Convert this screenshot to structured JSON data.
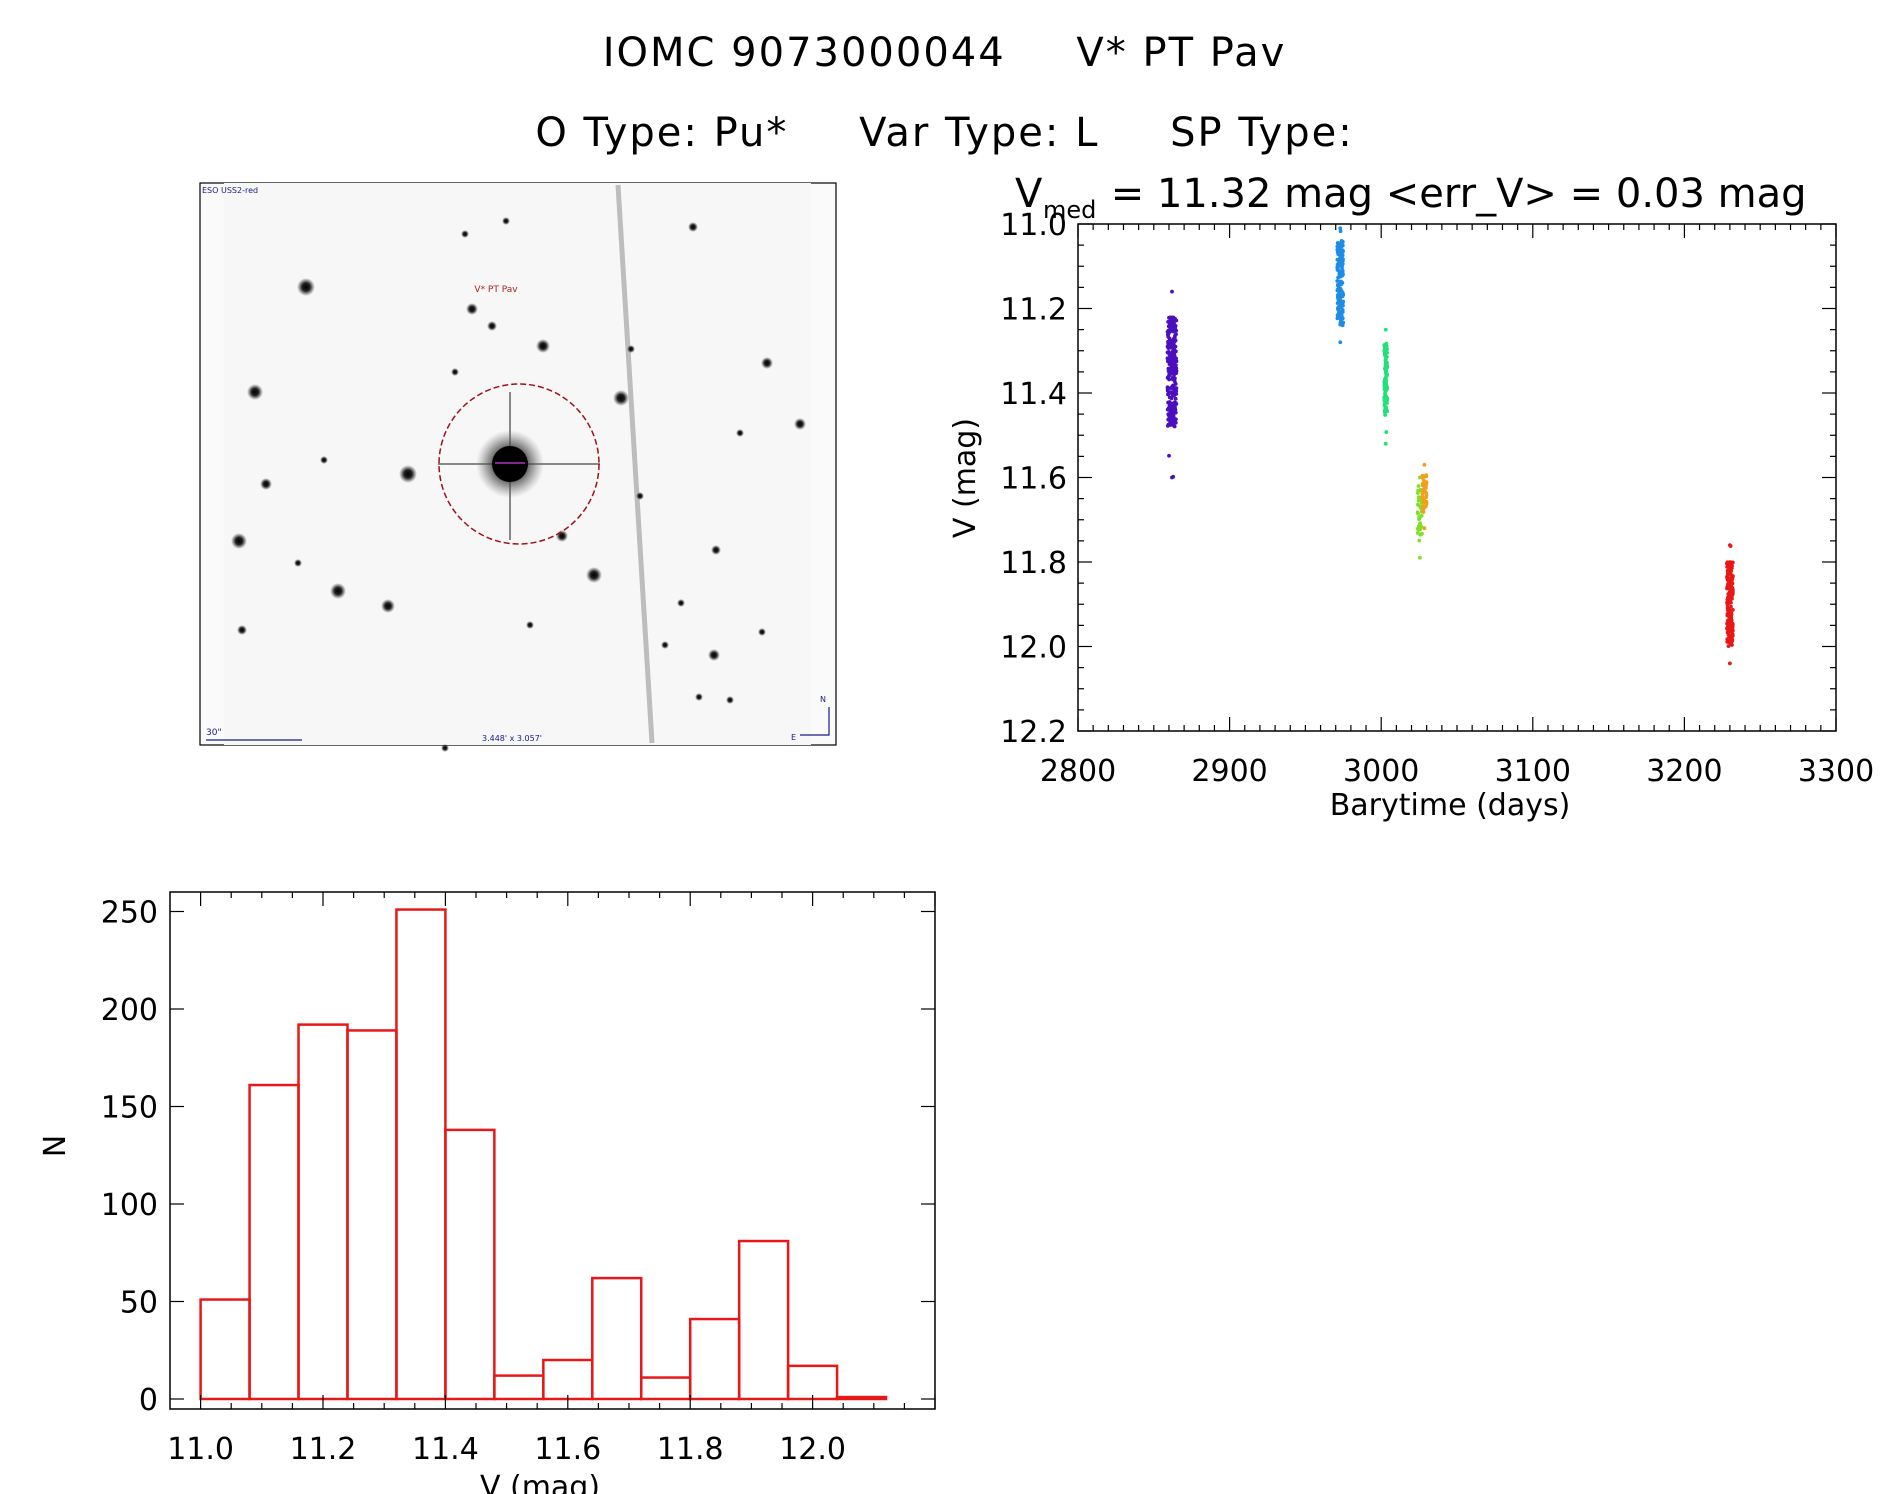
{
  "title": {
    "id": "IOMC 9073000044",
    "name": "V* PT Pav",
    "otype": "O Type: Pu*",
    "vartype": "Var Type: L",
    "sptype": "SP Type:"
  },
  "image": {
    "survey_label": "ESO USS2-red",
    "star_label": "V* PT Pav",
    "scale_label": "30\"",
    "size_label": "3.448' x 3.057'",
    "north_label": "N",
    "east_label": "E"
  },
  "chart_data": [
    {
      "type": "scatter",
      "title_main": "V",
      "title_sub": "med",
      "title_rest": " = 11.32 mag <err_V> = 0.03 mag",
      "xlabel": "Barytime (days)",
      "ylabel": "V (mag)",
      "xlim": [
        2800,
        3300
      ],
      "ylim": [
        12.2,
        11.0
      ],
      "xticks": [
        "2800",
        "2900",
        "3000",
        "3100",
        "3200",
        "3300"
      ],
      "yticks": [
        "11.0",
        "11.2",
        "11.4",
        "11.6",
        "11.8",
        "12.0",
        "12.2"
      ],
      "series": [
        {
          "color": "#4b0fbf",
          "x_range": [
            2859,
            2865
          ],
          "y_range": [
            11.16,
            11.6
          ],
          "y_core": [
            11.22,
            11.48
          ],
          "n": 260
        },
        {
          "color": "#1e8ce6",
          "x_range": [
            2971,
            2975
          ],
          "y_range": [
            11.01,
            11.28
          ],
          "y_core": [
            11.04,
            11.24
          ],
          "n": 150
        },
        {
          "color": "#22e07a",
          "x_range": [
            3002,
            3004
          ],
          "y_range": [
            11.25,
            11.52
          ],
          "y_core": [
            11.28,
            11.45
          ],
          "n": 90
        },
        {
          "color": "#7fe02a",
          "x_range": [
            3024,
            3027
          ],
          "y_range": [
            11.6,
            11.79
          ],
          "y_core": [
            11.62,
            11.74
          ],
          "n": 40
        },
        {
          "color": "#f2a01a",
          "x_range": [
            3027,
            3030
          ],
          "y_range": [
            11.57,
            11.72
          ],
          "y_core": [
            11.59,
            11.68
          ],
          "n": 40
        },
        {
          "color": "#e81818",
          "x_range": [
            3228,
            3232
          ],
          "y_range": [
            11.76,
            12.04
          ],
          "y_core": [
            11.8,
            12.0
          ],
          "n": 190
        }
      ]
    },
    {
      "type": "bar",
      "xlabel": "V (mag)",
      "ylabel": "N",
      "xlim": [
        10.95,
        12.2
      ],
      "ylim": [
        0,
        260
      ],
      "xticks": [
        "11.0",
        "11.2",
        "11.4",
        "11.6",
        "11.8",
        "12.0"
      ],
      "yticks": [
        "0",
        "50",
        "100",
        "150",
        "200",
        "250"
      ],
      "bin_width": 0.08,
      "bin_start": 11.0,
      "color": "#e81818",
      "values": [
        51,
        161,
        192,
        189,
        251,
        138,
        12,
        20,
        62,
        11,
        41,
        81,
        17,
        1
      ]
    }
  ]
}
